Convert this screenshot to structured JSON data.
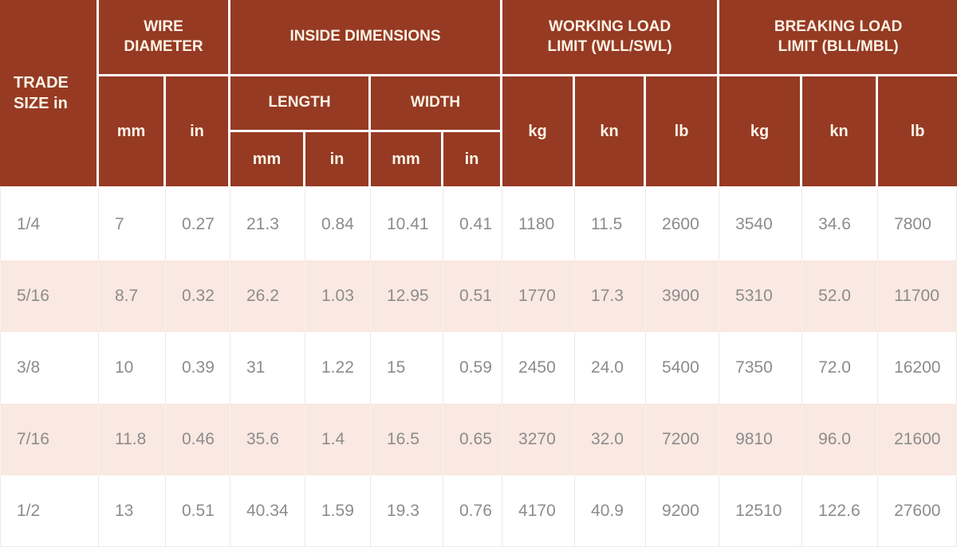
{
  "colors": {
    "header_bg": "#963A23",
    "header_text": "#FBF3E6",
    "row_bg": "#FFFFFF",
    "row_alt_bg": "#FAE8E2",
    "data_text": "#8C8C8C",
    "header_border": "#FFFFFF",
    "grid_line": "#ECEAE8"
  },
  "header": {
    "trade_size_label": "TRADE SIZE in",
    "wire_diameter": {
      "label": "WIRE DIAMETER",
      "units": [
        "mm",
        "in"
      ]
    },
    "inside_dimensions": {
      "label": "INSIDE DIMENSIONS",
      "length": {
        "label": "LENGTH",
        "units": [
          "mm",
          "in"
        ]
      },
      "width": {
        "label": "WIDTH",
        "units": [
          "mm",
          "in"
        ]
      }
    },
    "working_load": {
      "label": "WORKING LOAD LIMIT (WLL/SWL)",
      "units": [
        "kg",
        "kn",
        "lb"
      ]
    },
    "breaking_load": {
      "label": "BREAKING LOAD LIMIT (BLL/MBL)",
      "units": [
        "kg",
        "kn",
        "lb"
      ]
    }
  },
  "rows": [
    [
      "1/4",
      "7",
      "0.27",
      "21.3",
      "0.84",
      "10.41",
      "0.41",
      "1180",
      "11.5",
      "2600",
      "3540",
      "34.6",
      "7800"
    ],
    [
      "5/16",
      "8.7",
      "0.32",
      "26.2",
      "1.03",
      "12.95",
      "0.51",
      "1770",
      "17.3",
      "3900",
      "5310",
      "52.0",
      "11700"
    ],
    [
      "3/8",
      "10",
      "0.39",
      "31",
      "1.22",
      "15",
      "0.59",
      "2450",
      "24.0",
      "5400",
      "7350",
      "72.0",
      "16200"
    ],
    [
      "7/16",
      "11.8",
      "0.46",
      "35.6",
      "1.4",
      "16.5",
      "0.65",
      "3270",
      "32.0",
      "7200",
      "9810",
      "96.0",
      "21600"
    ],
    [
      "1/2",
      "13",
      "0.51",
      "40.34",
      "1.59",
      "19.3",
      "0.76",
      "4170",
      "40.9",
      "9200",
      "12510",
      "122.6",
      "27600"
    ]
  ],
  "chart_data": {
    "type": "table",
    "title": "",
    "columns": [
      "TRADE SIZE in",
      "WIRE DIAMETER mm",
      "WIRE DIAMETER in",
      "INSIDE DIMENSIONS LENGTH mm",
      "INSIDE DIMENSIONS LENGTH in",
      "INSIDE DIMENSIONS WIDTH mm",
      "INSIDE DIMENSIONS WIDTH in",
      "WORKING LOAD LIMIT (WLL/SWL) kg",
      "WORKING LOAD LIMIT (WLL/SWL) kn",
      "WORKING LOAD LIMIT (WLL/SWL) lb",
      "BREAKING LOAD LIMIT (BLL/MBL) kg",
      "BREAKING LOAD LIMIT (BLL/MBL) kn",
      "BREAKING LOAD LIMIT (BLL/MBL) lb"
    ],
    "rows": [
      [
        "1/4",
        "7",
        "0.27",
        "21.3",
        "0.84",
        "10.41",
        "0.41",
        "1180",
        "11.5",
        "2600",
        "3540",
        "34.6",
        "7800"
      ],
      [
        "5/16",
        "8.7",
        "0.32",
        "26.2",
        "1.03",
        "12.95",
        "0.51",
        "1770",
        "17.3",
        "3900",
        "5310",
        "52.0",
        "11700"
      ],
      [
        "3/8",
        "10",
        "0.39",
        "31",
        "1.22",
        "15",
        "0.59",
        "2450",
        "24.0",
        "5400",
        "7350",
        "72.0",
        "16200"
      ],
      [
        "7/16",
        "11.8",
        "0.46",
        "35.6",
        "1.4",
        "16.5",
        "0.65",
        "3270",
        "32.0",
        "7200",
        "9810",
        "96.0",
        "21600"
      ],
      [
        "1/2",
        "13",
        "0.51",
        "40.34",
        "1.59",
        "19.3",
        "0.76",
        "4170",
        "40.9",
        "9200",
        "12510",
        "122.6",
        "27600"
      ]
    ]
  }
}
